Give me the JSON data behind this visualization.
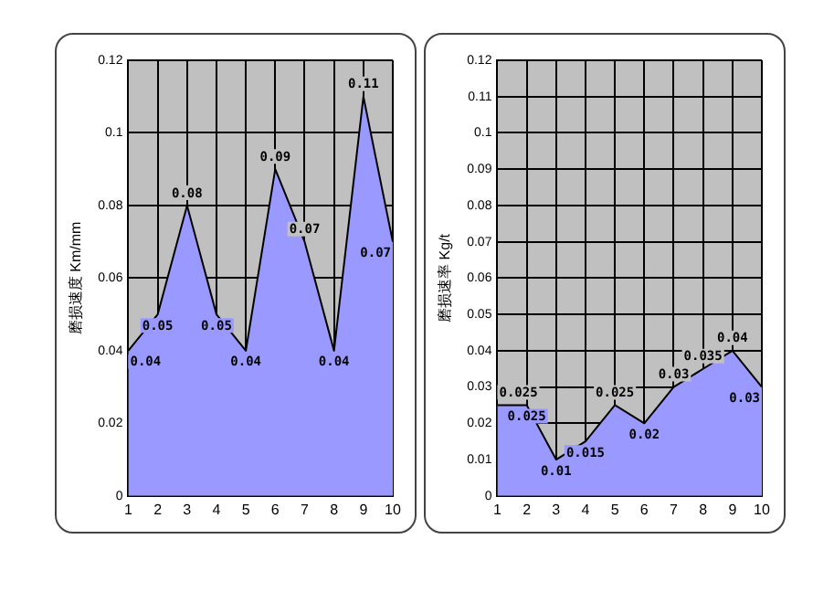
{
  "chart_data": [
    {
      "type": "area",
      "ylabel": "磨损速度 Km/mm",
      "categories": [
        "1",
        "2",
        "3",
        "4",
        "5",
        "6",
        "7",
        "8",
        "9",
        "10"
      ],
      "series": [
        {
          "color": "#9999ff",
          "values": [
            0.04,
            0.05,
            0.08,
            0.05,
            0.04,
            0.09,
            0.07,
            0.04,
            0.11,
            0.07
          ]
        }
      ],
      "ylim": [
        0,
        0.12
      ],
      "yticks": [
        0,
        0.02,
        0.04,
        0.06,
        0.08,
        0.1,
        0.12
      ],
      "grid": true,
      "data_labels": true
    },
    {
      "type": "area",
      "ylabel": "磨损速率 Kg/t",
      "categories": [
        "1",
        "2",
        "3",
        "4",
        "5",
        "6",
        "7",
        "8",
        "9",
        "10"
      ],
      "series": [
        {
          "color": "#9999ff",
          "values": [
            0.025,
            0.025,
            0.01,
            0.015,
            0.025,
            0.02,
            0.03,
            0.035,
            0.04,
            0.03
          ]
        }
      ],
      "ylim": [
        0,
        0.12
      ],
      "yticks": [
        0,
        0.01,
        0.02,
        0.03,
        0.04,
        0.05,
        0.06,
        0.07,
        0.08,
        0.09,
        0.1,
        0.11,
        0.12
      ],
      "grid": true,
      "data_labels": true
    }
  ]
}
